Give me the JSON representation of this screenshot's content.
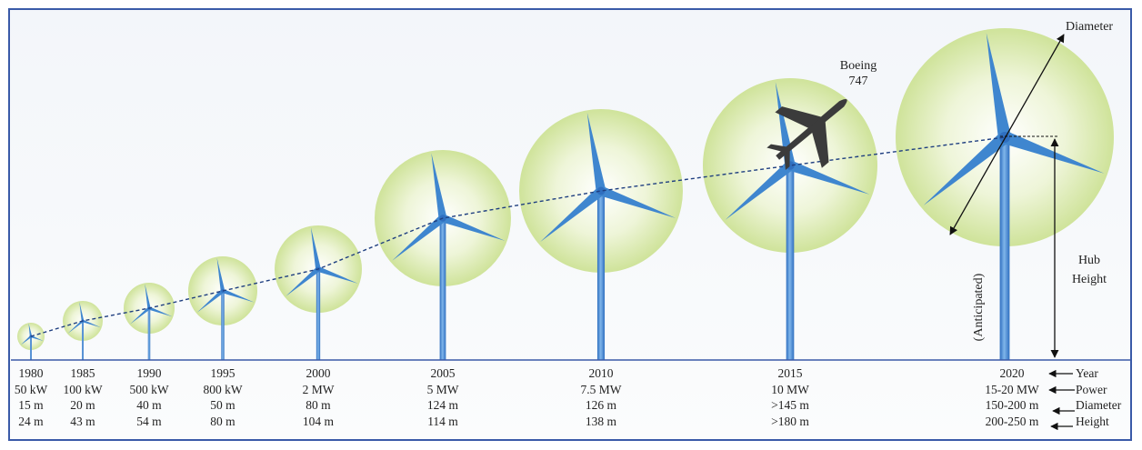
{
  "turbines": [
    {
      "year": "1980",
      "power": "50 kW",
      "diameter": "15 m",
      "height": "24 m"
    },
    {
      "year": "1985",
      "power": "100 kW",
      "diameter": "20 m",
      "height": "43 m"
    },
    {
      "year": "1990",
      "power": "500 kW",
      "diameter": "40 m",
      "height": "54 m"
    },
    {
      "year": "1995",
      "power": "800 kW",
      "diameter": "50 m",
      "height": "80 m"
    },
    {
      "year": "2000",
      "power": "2 MW",
      "diameter": "80 m",
      "height": "104 m"
    },
    {
      "year": "2005",
      "power": "5 MW",
      "diameter": "124 m",
      "height": "114 m"
    },
    {
      "year": "2010",
      "power": "7.5 MW",
      "diameter": "126 m",
      "height": "138 m"
    },
    {
      "year": "2015",
      "power": "10 MW",
      "diameter": ">145 m",
      "height": ">180 m"
    },
    {
      "year": "2020",
      "power": "15-20 MW",
      "diameter": "150-200 m",
      "height": "200-250 m"
    }
  ],
  "legend": {
    "year": "Year",
    "power": "Power",
    "diameter": "Diameter",
    "height": "Height"
  },
  "annotations": {
    "boeing_line1": "Boeing",
    "boeing_line2": "747",
    "diameter": "Diameter",
    "hub_height": "Hub Height",
    "anticipated": "(Anticipated)"
  },
  "colors": {
    "frame": "#3a5aa8",
    "rotor_disc": "#d6e8a8",
    "tower": "#4a8fd6",
    "blade": "#3f86cf",
    "dashed_line": "#1f3f80",
    "aircraft": "#3b3b3b"
  }
}
